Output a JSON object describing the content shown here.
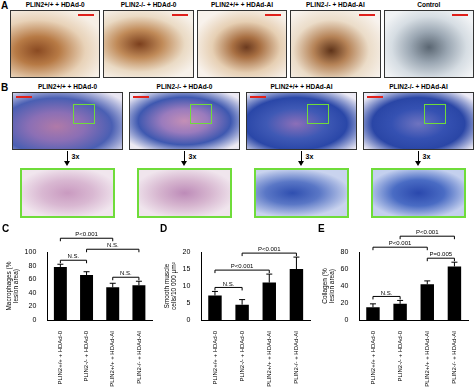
{
  "image_panels": {
    "panel_a": {
      "label": "A",
      "columns": [
        "PLIN2+/+ + HDAd-0",
        "PLIN2-/- + HDAd-0",
        "PLIN2+/+ + HDAd-AI",
        "PLIN2-/- + HDAd-AI",
        "Control"
      ]
    },
    "panel_b": {
      "label": "B",
      "columns": [
        "PLIN2+/+ + HDAd-0",
        "PLIN2-/- + HDAd-0",
        "PLIN2+/+ + HDAd-AI",
        "PLIN2-/- + HDAd-AI"
      ],
      "zoom_labels": [
        "3x",
        "3x",
        "3x",
        "3x"
      ]
    }
  },
  "chart_data": [
    {
      "panel": "C",
      "type": "bar",
      "y_label": "Macrophages (% lesion area)",
      "categories": [
        "PLIN2+/+ + HDAd-0",
        "PLIN2-/- + HDAd-0",
        "PLIN2+/+ + HDAd-AI",
        "PLIN2-/- + HDAd-AI"
      ],
      "values": [
        78,
        66,
        48,
        51
      ],
      "error": [
        4,
        5,
        6,
        6
      ],
      "color": "#000000",
      "ylim": [
        0,
        100
      ],
      "yticks": [
        0,
        20,
        40,
        60,
        80,
        100
      ],
      "grid": false,
      "annotations": [
        {
          "text": "N.S.",
          "between": [
            "PLIN2+/+ + HDAd-0",
            "PLIN2-/- + HDAd-0"
          ]
        },
        {
          "text": "N.S.",
          "between": [
            "PLIN2+/+ + HDAd-AI",
            "PLIN2-/- + HDAd-AI"
          ]
        },
        {
          "text": "N.S.",
          "between": [
            "PLIN2-/- + HDAd-0",
            "PLIN2-/- + HDAd-AI"
          ]
        },
        {
          "text": "P<0.001",
          "between": [
            "PLIN2+/+ + HDAd-0",
            "PLIN2+/+ + HDAd-AI"
          ]
        }
      ]
    },
    {
      "panel": "D",
      "type": "bar",
      "y_label": "Smooth muscle cells/10 000 μm²",
      "categories": [
        "PLIN2+/+ + HDAd-0",
        "PLIN2-/- + HDAd-0",
        "PLIN2+/+ + HDAd-AI",
        "PLIN2-/- + HDAd-AI"
      ],
      "values": [
        7.2,
        4.5,
        11,
        15
      ],
      "error": [
        1.2,
        1.5,
        2.5,
        3.5
      ],
      "color": "#000000",
      "ylim": [
        0,
        20
      ],
      "yticks": [
        0,
        5,
        10,
        15,
        20
      ],
      "grid": false,
      "annotations": [
        {
          "text": "N.S.",
          "between": [
            "PLIN2+/+ + HDAd-0",
            "PLIN2-/- + HDAd-0"
          ]
        },
        {
          "text": "P<0.001",
          "between": [
            "PLIN2+/+ + HDAd-0",
            "PLIN2+/+ + HDAd-AI"
          ]
        },
        {
          "text": "P<0.001",
          "between": [
            "PLIN2-/- + HDAd-0",
            "PLIN2-/- + HDAd-AI"
          ]
        }
      ]
    },
    {
      "panel": "E",
      "type": "bar",
      "y_label": "Collagen (% lesion area)",
      "categories": [
        "PLIN2+/+ + HDAd-0",
        "PLIN2-/- + HDAd-0",
        "PLIN2+/+ + HDAd-AI",
        "PLIN2-/- + HDAd-AI"
      ],
      "values": [
        15,
        19,
        42,
        63
      ],
      "error": [
        4,
        4,
        4,
        5
      ],
      "color": "#000000",
      "ylim": [
        0,
        80
      ],
      "yticks": [
        0,
        20,
        40,
        60,
        80
      ],
      "grid": false,
      "annotations": [
        {
          "text": "N.S.",
          "between": [
            "PLIN2+/+ + HDAd-0",
            "PLIN2-/- + HDAd-0"
          ]
        },
        {
          "text": "P=0.005",
          "between": [
            "PLIN2+/+ + HDAd-AI",
            "PLIN2-/- + HDAd-AI"
          ]
        },
        {
          "text": "P<0.001",
          "between": [
            "PLIN2+/+ + HDAd-0",
            "PLIN2+/+ + HDAd-AI"
          ]
        },
        {
          "text": "P<0.001",
          "between": [
            "PLIN2-/- + HDAd-0",
            "PLIN2-/- + HDAd-AI"
          ]
        }
      ]
    }
  ]
}
